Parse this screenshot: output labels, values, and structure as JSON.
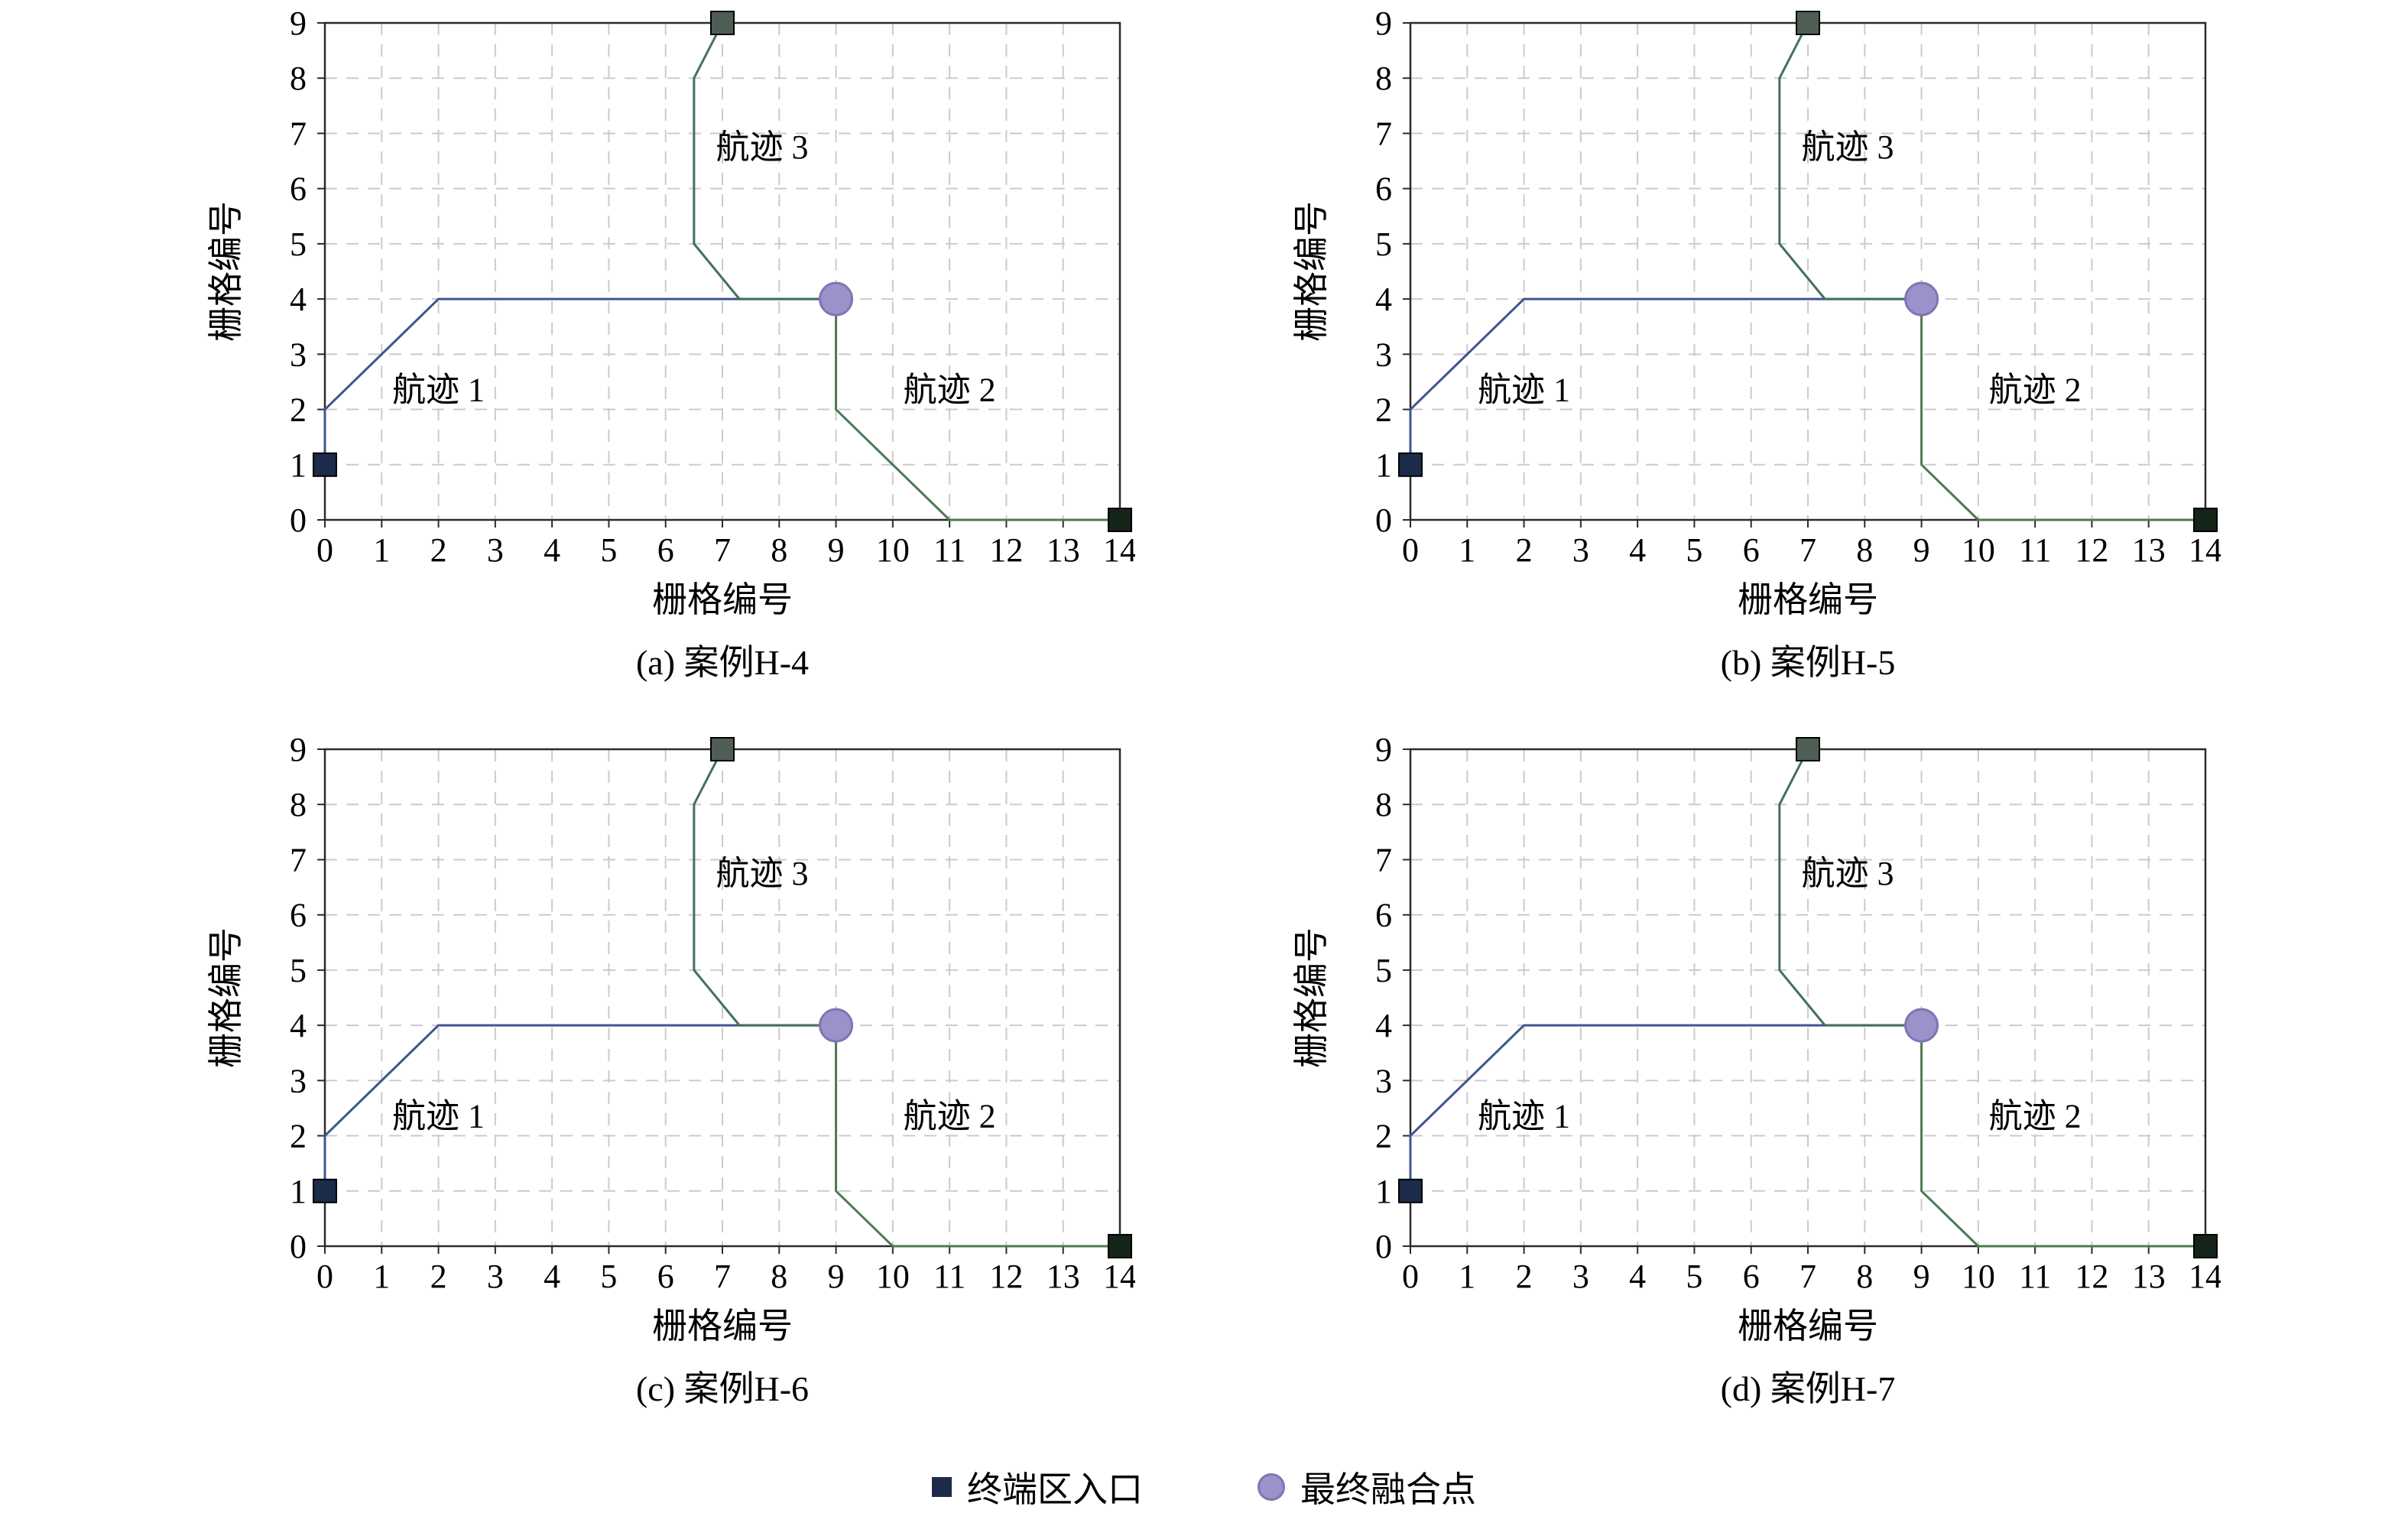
{
  "colors": {
    "track1": "#3d568f",
    "track2": "#4d7a50",
    "track3": "#43705e",
    "grid": "#cbcbcb",
    "axis": "#2b2b2b",
    "merge_fill": "#9a92c8",
    "merge_edge": "#7e76b4",
    "entry": "#1c2b4a"
  },
  "legend": {
    "entry_label": "终端区入口",
    "merge_label": "最终融合点"
  },
  "chart_data": [
    {
      "type": "line",
      "caption": "(a) 案例H-4",
      "xlabel": "栅格编号",
      "ylabel": "栅格编号",
      "xlim": [
        0,
        14
      ],
      "ylim": [
        0,
        9
      ],
      "xticks": [
        0,
        1,
        2,
        3,
        4,
        5,
        6,
        7,
        8,
        9,
        10,
        11,
        12,
        13,
        14
      ],
      "yticks": [
        0,
        1,
        2,
        3,
        4,
        5,
        6,
        7,
        8,
        9
      ],
      "grid": "dashed",
      "series": [
        {
          "name": "航迹 1",
          "color_key": "track1",
          "points": [
            [
              0,
              1
            ],
            [
              0,
              2
            ],
            [
              2,
              4
            ],
            [
              9,
              4
            ]
          ]
        },
        {
          "name": "航迹 2",
          "color_key": "track2",
          "points": [
            [
              9,
              4
            ],
            [
              9,
              2
            ],
            [
              11,
              0
            ],
            [
              14,
              0
            ]
          ]
        },
        {
          "name": "航迹 3",
          "color_key": "track3",
          "points": [
            [
              7,
              9
            ],
            [
              6.5,
              8
            ],
            [
              6.5,
              5
            ],
            [
              7.3,
              4
            ],
            [
              9,
              4
            ]
          ]
        }
      ],
      "labels": [
        {
          "text": "航迹 1",
          "x": 2.0,
          "y": 2.15
        },
        {
          "text": "航迹 2",
          "x": 11.0,
          "y": 2.15
        },
        {
          "text": "航迹 3",
          "x": 7.7,
          "y": 6.55
        }
      ],
      "markers": [
        {
          "kind": "square",
          "x": 0,
          "y": 1,
          "color": "#1c2b4a"
        },
        {
          "kind": "square",
          "x": 7,
          "y": 9,
          "color": "#4f5e55"
        },
        {
          "kind": "square",
          "x": 14,
          "y": 0,
          "color": "#152419"
        },
        {
          "kind": "circle",
          "x": 9,
          "y": 4,
          "color": "#9a92c8",
          "edge": "#7e76b4"
        }
      ]
    },
    {
      "type": "line",
      "caption": "(b) 案例H-5",
      "xlabel": "栅格编号",
      "ylabel": "栅格编号",
      "xlim": [
        0,
        14
      ],
      "ylim": [
        0,
        9
      ],
      "xticks": [
        0,
        1,
        2,
        3,
        4,
        5,
        6,
        7,
        8,
        9,
        10,
        11,
        12,
        13,
        14
      ],
      "yticks": [
        0,
        1,
        2,
        3,
        4,
        5,
        6,
        7,
        8,
        9
      ],
      "grid": "dashed",
      "series": [
        {
          "name": "航迹 1",
          "color_key": "track1",
          "points": [
            [
              0,
              1
            ],
            [
              0,
              2
            ],
            [
              2,
              4
            ],
            [
              9,
              4
            ]
          ]
        },
        {
          "name": "航迹 2",
          "color_key": "track2",
          "points": [
            [
              9,
              4
            ],
            [
              9,
              1
            ],
            [
              10,
              0
            ],
            [
              14,
              0
            ]
          ]
        },
        {
          "name": "航迹 3",
          "color_key": "track3",
          "points": [
            [
              7,
              9
            ],
            [
              6.5,
              8
            ],
            [
              6.5,
              5
            ],
            [
              7.3,
              4
            ],
            [
              9,
              4
            ]
          ]
        }
      ],
      "labels": [
        {
          "text": "航迹 1",
          "x": 2.0,
          "y": 2.15
        },
        {
          "text": "航迹 2",
          "x": 11.0,
          "y": 2.15
        },
        {
          "text": "航迹 3",
          "x": 7.7,
          "y": 6.55
        }
      ],
      "markers": [
        {
          "kind": "square",
          "x": 0,
          "y": 1,
          "color": "#1c2b4a"
        },
        {
          "kind": "square",
          "x": 7,
          "y": 9,
          "color": "#4f5e55"
        },
        {
          "kind": "square",
          "x": 14,
          "y": 0,
          "color": "#152419"
        },
        {
          "kind": "circle",
          "x": 9,
          "y": 4,
          "color": "#9a92c8",
          "edge": "#7e76b4"
        }
      ]
    },
    {
      "type": "line",
      "caption": "(c) 案例H-6",
      "xlabel": "栅格编号",
      "ylabel": "栅格编号",
      "xlim": [
        0,
        14
      ],
      "ylim": [
        0,
        9
      ],
      "xticks": [
        0,
        1,
        2,
        3,
        4,
        5,
        6,
        7,
        8,
        9,
        10,
        11,
        12,
        13,
        14
      ],
      "yticks": [
        0,
        1,
        2,
        3,
        4,
        5,
        6,
        7,
        8,
        9
      ],
      "grid": "dashed",
      "series": [
        {
          "name": "航迹 1",
          "color_key": "track1",
          "points": [
            [
              0,
              1
            ],
            [
              0,
              2
            ],
            [
              2,
              4
            ],
            [
              9,
              4
            ]
          ]
        },
        {
          "name": "航迹 2",
          "color_key": "track2",
          "points": [
            [
              9,
              4
            ],
            [
              9,
              1
            ],
            [
              10,
              0
            ],
            [
              14,
              0
            ]
          ]
        },
        {
          "name": "航迹 3",
          "color_key": "track3",
          "points": [
            [
              7,
              9
            ],
            [
              6.5,
              8
            ],
            [
              6.5,
              5
            ],
            [
              7.3,
              4
            ],
            [
              9,
              4
            ]
          ]
        }
      ],
      "labels": [
        {
          "text": "航迹 1",
          "x": 2.0,
          "y": 2.15
        },
        {
          "text": "航迹 2",
          "x": 11.0,
          "y": 2.15
        },
        {
          "text": "航迹 3",
          "x": 7.7,
          "y": 6.55
        }
      ],
      "markers": [
        {
          "kind": "square",
          "x": 0,
          "y": 1,
          "color": "#1c2b4a"
        },
        {
          "kind": "square",
          "x": 7,
          "y": 9,
          "color": "#4f5e55"
        },
        {
          "kind": "square",
          "x": 14,
          "y": 0,
          "color": "#152419"
        },
        {
          "kind": "circle",
          "x": 9,
          "y": 4,
          "color": "#9a92c8",
          "edge": "#7e76b4"
        }
      ]
    },
    {
      "type": "line",
      "caption": "(d) 案例H-7",
      "xlabel": "栅格编号",
      "ylabel": "栅格编号",
      "xlim": [
        0,
        14
      ],
      "ylim": [
        0,
        9
      ],
      "xticks": [
        0,
        1,
        2,
        3,
        4,
        5,
        6,
        7,
        8,
        9,
        10,
        11,
        12,
        13,
        14
      ],
      "yticks": [
        0,
        1,
        2,
        3,
        4,
        5,
        6,
        7,
        8,
        9
      ],
      "grid": "dashed",
      "series": [
        {
          "name": "航迹 1",
          "color_key": "track1",
          "points": [
            [
              0,
              1
            ],
            [
              0,
              2
            ],
            [
              2,
              4
            ],
            [
              9,
              4
            ]
          ]
        },
        {
          "name": "航迹 2",
          "color_key": "track2",
          "points": [
            [
              9,
              4
            ],
            [
              9,
              1
            ],
            [
              10,
              0
            ],
            [
              14,
              0
            ]
          ]
        },
        {
          "name": "航迹 3",
          "color_key": "track3",
          "points": [
            [
              7,
              9
            ],
            [
              6.5,
              8
            ],
            [
              6.5,
              5
            ],
            [
              7.3,
              4
            ],
            [
              9,
              4
            ]
          ]
        }
      ],
      "labels": [
        {
          "text": "航迹 1",
          "x": 2.0,
          "y": 2.15
        },
        {
          "text": "航迹 2",
          "x": 11.0,
          "y": 2.15
        },
        {
          "text": "航迹 3",
          "x": 7.7,
          "y": 6.55
        }
      ],
      "markers": [
        {
          "kind": "square",
          "x": 0,
          "y": 1,
          "color": "#1c2b4a"
        },
        {
          "kind": "square",
          "x": 7,
          "y": 9,
          "color": "#4f5e55"
        },
        {
          "kind": "square",
          "x": 14,
          "y": 0,
          "color": "#152419"
        },
        {
          "kind": "circle",
          "x": 9,
          "y": 4,
          "color": "#9a92c8",
          "edge": "#7e76b4"
        }
      ]
    }
  ]
}
